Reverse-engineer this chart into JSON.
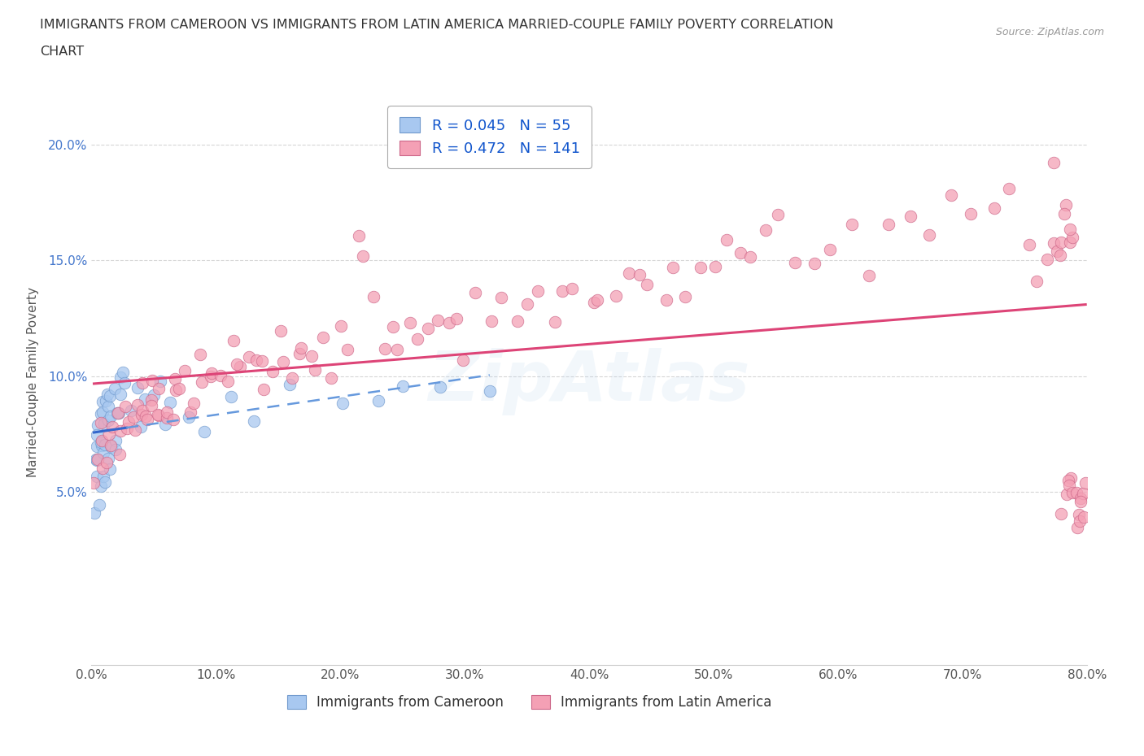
{
  "title_line1": "IMMIGRANTS FROM CAMEROON VS IMMIGRANTS FROM LATIN AMERICA MARRIED-COUPLE FAMILY POVERTY CORRELATION",
  "title_line2": "CHART",
  "source": "Source: ZipAtlas.com",
  "ylabel": "Married-Couple Family Poverty",
  "xlim": [
    0.0,
    0.8
  ],
  "ylim": [
    -0.025,
    0.22
  ],
  "xticks": [
    0.0,
    0.1,
    0.2,
    0.3,
    0.4,
    0.5,
    0.6,
    0.7,
    0.8
  ],
  "xticklabels": [
    "0.0%",
    "10.0%",
    "20.0%",
    "30.0%",
    "40.0%",
    "50.0%",
    "60.0%",
    "70.0%",
    "80.0%"
  ],
  "ytick_positions": [
    0.05,
    0.1,
    0.15,
    0.2
  ],
  "yticklabels": [
    "5.0%",
    "10.0%",
    "15.0%",
    "20.0%"
  ],
  "cameroon_color": "#A8C8F0",
  "latin_color": "#F4A0B5",
  "cameroon_edge": "#7099CC",
  "latin_edge": "#CC6688",
  "trendline_cameroon_solid": "#3366CC",
  "trendline_cameroon_dashed": "#6699DD",
  "trendline_latin": "#DD4477",
  "legend_R_cameroon": "0.045",
  "legend_N_cameroon": "55",
  "legend_R_latin": "0.472",
  "legend_N_latin": "141",
  "watermark": "ZipAtlas",
  "background": "#FFFFFF",
  "grid_color": "#CCCCCC",
  "cameroon_x": [
    0.002,
    0.003,
    0.004,
    0.004,
    0.005,
    0.005,
    0.006,
    0.006,
    0.007,
    0.007,
    0.008,
    0.008,
    0.009,
    0.009,
    0.01,
    0.01,
    0.01,
    0.011,
    0.011,
    0.012,
    0.012,
    0.013,
    0.013,
    0.014,
    0.015,
    0.015,
    0.016,
    0.017,
    0.018,
    0.019,
    0.02,
    0.021,
    0.022,
    0.023,
    0.025,
    0.026,
    0.028,
    0.03,
    0.035,
    0.04,
    0.042,
    0.05,
    0.055,
    0.06,
    0.065,
    0.08,
    0.09,
    0.11,
    0.13,
    0.16,
    0.2,
    0.23,
    0.25,
    0.28,
    0.32
  ],
  "cameroon_y": [
    0.065,
    0.045,
    0.055,
    0.07,
    0.06,
    0.08,
    0.05,
    0.075,
    0.065,
    0.085,
    0.055,
    0.075,
    0.07,
    0.09,
    0.06,
    0.08,
    0.055,
    0.07,
    0.085,
    0.075,
    0.065,
    0.08,
    0.09,
    0.07,
    0.065,
    0.085,
    0.08,
    0.09,
    0.075,
    0.095,
    0.07,
    0.085,
    0.08,
    0.095,
    0.09,
    0.1,
    0.095,
    0.085,
    0.095,
    0.08,
    0.09,
    0.085,
    0.095,
    0.08,
    0.09,
    0.085,
    0.075,
    0.09,
    0.085,
    0.095,
    0.09,
    0.085,
    0.095,
    0.09,
    0.095
  ],
  "latin_x": [
    0.002,
    0.004,
    0.006,
    0.008,
    0.01,
    0.012,
    0.014,
    0.016,
    0.018,
    0.02,
    0.022,
    0.024,
    0.026,
    0.028,
    0.03,
    0.032,
    0.034,
    0.036,
    0.038,
    0.04,
    0.042,
    0.044,
    0.046,
    0.048,
    0.05,
    0.052,
    0.054,
    0.056,
    0.058,
    0.06,
    0.062,
    0.065,
    0.068,
    0.07,
    0.073,
    0.076,
    0.08,
    0.084,
    0.088,
    0.092,
    0.096,
    0.1,
    0.104,
    0.108,
    0.112,
    0.116,
    0.12,
    0.125,
    0.13,
    0.135,
    0.14,
    0.145,
    0.15,
    0.155,
    0.16,
    0.165,
    0.17,
    0.176,
    0.182,
    0.188,
    0.194,
    0.2,
    0.206,
    0.213,
    0.22,
    0.227,
    0.234,
    0.241,
    0.248,
    0.255,
    0.263,
    0.27,
    0.278,
    0.285,
    0.293,
    0.302,
    0.311,
    0.32,
    0.33,
    0.34,
    0.35,
    0.36,
    0.37,
    0.38,
    0.39,
    0.4,
    0.41,
    0.42,
    0.43,
    0.44,
    0.45,
    0.46,
    0.47,
    0.48,
    0.49,
    0.5,
    0.51,
    0.52,
    0.53,
    0.542,
    0.554,
    0.566,
    0.58,
    0.594,
    0.61,
    0.626,
    0.642,
    0.658,
    0.674,
    0.69,
    0.706,
    0.722,
    0.738,
    0.754,
    0.762,
    0.768,
    0.772,
    0.775,
    0.776,
    0.778,
    0.779,
    0.78,
    0.781,
    0.782,
    0.783,
    0.784,
    0.785,
    0.786,
    0.787,
    0.788,
    0.789,
    0.79,
    0.791,
    0.792,
    0.793,
    0.794,
    0.795,
    0.796,
    0.797,
    0.798,
    0.799
  ],
  "latin_y": [
    0.055,
    0.065,
    0.07,
    0.06,
    0.075,
    0.065,
    0.08,
    0.07,
    0.075,
    0.07,
    0.08,
    0.075,
    0.085,
    0.07,
    0.08,
    0.085,
    0.075,
    0.09,
    0.08,
    0.085,
    0.09,
    0.08,
    0.085,
    0.095,
    0.085,
    0.09,
    0.085,
    0.095,
    0.09,
    0.085,
    0.095,
    0.09,
    0.1,
    0.09,
    0.095,
    0.1,
    0.09,
    0.095,
    0.105,
    0.095,
    0.1,
    0.095,
    0.105,
    0.1,
    0.11,
    0.095,
    0.105,
    0.1,
    0.11,
    0.105,
    0.095,
    0.11,
    0.105,
    0.115,
    0.1,
    0.11,
    0.105,
    0.115,
    0.11,
    0.12,
    0.105,
    0.115,
    0.11,
    0.165,
    0.155,
    0.12,
    0.115,
    0.125,
    0.11,
    0.12,
    0.115,
    0.125,
    0.13,
    0.12,
    0.125,
    0.115,
    0.13,
    0.12,
    0.135,
    0.125,
    0.13,
    0.14,
    0.13,
    0.135,
    0.145,
    0.13,
    0.14,
    0.135,
    0.145,
    0.135,
    0.145,
    0.14,
    0.15,
    0.14,
    0.15,
    0.145,
    0.155,
    0.145,
    0.155,
    0.15,
    0.16,
    0.15,
    0.16,
    0.155,
    0.165,
    0.155,
    0.165,
    0.17,
    0.165,
    0.175,
    0.165,
    0.175,
    0.18,
    0.16,
    0.145,
    0.15,
    0.155,
    0.195,
    0.165,
    0.155,
    0.16,
    0.04,
    0.165,
    0.17,
    0.055,
    0.165,
    0.05,
    0.055,
    0.05,
    0.045,
    0.16,
    0.165,
    0.045,
    0.05,
    0.045,
    0.05,
    0.04,
    0.045,
    0.05,
    0.045,
    0.05
  ]
}
